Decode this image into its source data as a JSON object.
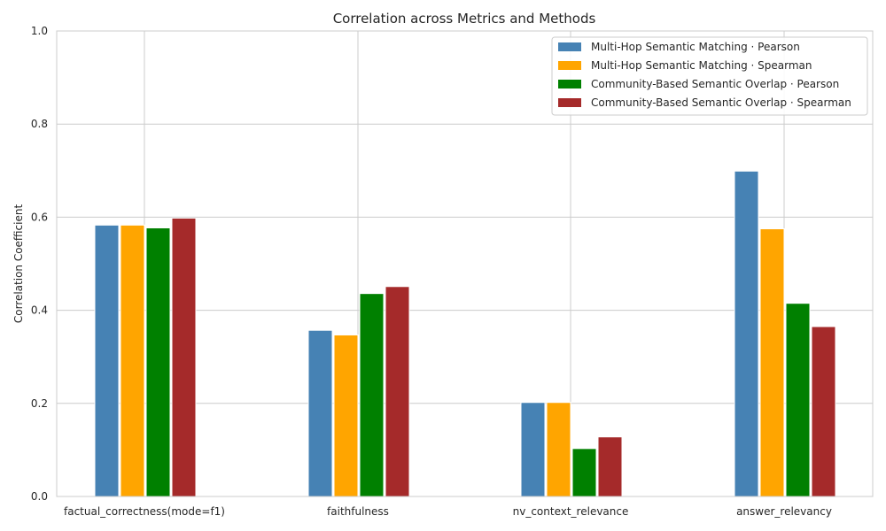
{
  "chart_data": {
    "type": "bar",
    "title": "Correlation across Metrics and Methods",
    "xlabel": "",
    "ylabel": "Correlation Coefficient",
    "ylim": [
      0,
      1.0
    ],
    "yticks": [
      "0.0",
      "0.2",
      "0.4",
      "0.6",
      "0.8",
      "1.0"
    ],
    "grid": true,
    "legend_position": "top-right",
    "categories": [
      "factual_correctness(mode=f1)",
      "faithfulness",
      "nv_context_relevance",
      "answer_relevancy"
    ],
    "series": [
      {
        "name": "Multi-Hop Semantic Matching · Pearson",
        "color": "#4682b4",
        "values": [
          0.583,
          0.357,
          0.202,
          0.699
        ]
      },
      {
        "name": "Multi-Hop Semantic Matching · Spearman",
        "color": "#ffa500",
        "values": [
          0.583,
          0.347,
          0.202,
          0.575
        ]
      },
      {
        "name": "Community-Based Semantic Overlap · Pearson",
        "color": "#008000",
        "values": [
          0.577,
          0.436,
          0.103,
          0.415
        ]
      },
      {
        "name": "Community-Based Semantic Overlap · Spearman",
        "color": "#a52a2a",
        "values": [
          0.598,
          0.451,
          0.128,
          0.365
        ]
      }
    ]
  }
}
